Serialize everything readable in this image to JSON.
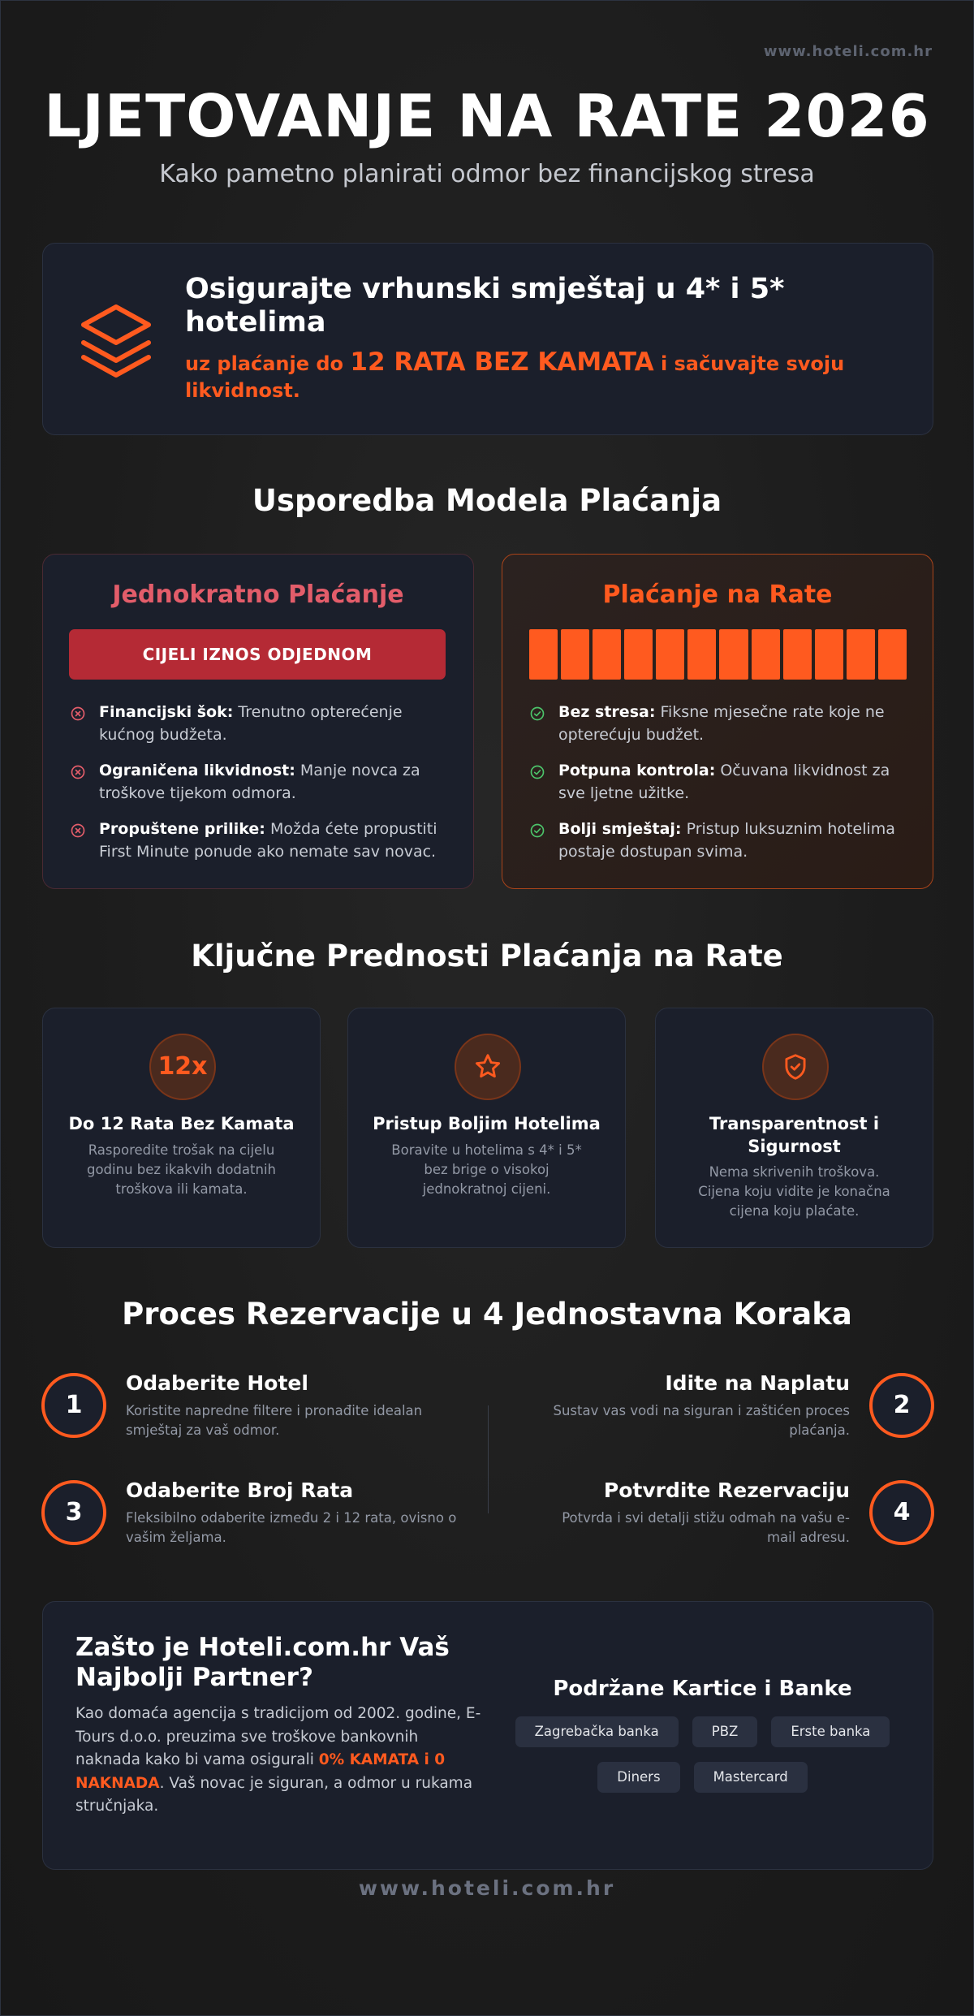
{
  "header": {
    "url": "www.hoteli.com.hr",
    "title": "LJETOVANJE NA RATE 2026",
    "subtitle": "Kako pametno planirati odmor bez financijskog stresa"
  },
  "hero": {
    "title": "Osigurajte vrhunski smještaj u 4* i 5* hotelima",
    "text_before": "uz plaćanje do",
    "highlight": "12 RATA BEZ KAMATA",
    "text_after": "i sačuvajte svoju likvidnost."
  },
  "comparison": {
    "title": "Usporedba Modela Plaćanja",
    "one_time": {
      "title": "Jednokratno Plaćanje",
      "bar_label": "CIJELI IZNOS ODJEDNOM",
      "items": [
        {
          "label": "Financijski šok:",
          "text": "Trenutno opterećenje kućnog budžeta."
        },
        {
          "label": "Ograničena likvidnost:",
          "text": "Manje novca za troškove tijekom odmora."
        },
        {
          "label": "Propuštene prilike:",
          "text": "Možda ćete propustiti First Minute ponude ako nemate sav novac."
        }
      ]
    },
    "installments": {
      "title": "Plaćanje na Rate",
      "items": [
        {
          "label": "Bez stresa:",
          "text": "Fiksne mjesečne rate koje ne opterećuju budžet."
        },
        {
          "label": "Potpuna kontrola:",
          "text": "Očuvana likvidnost za sve ljetne užitke."
        },
        {
          "label": "Bolji smještaj:",
          "text": "Pristup luksuznim hotelima postaje dostupan svima."
        }
      ]
    }
  },
  "benefits": {
    "title": "Ključne Prednosti Plaćanja na Rate",
    "cards": [
      {
        "icon": "12x",
        "title": "Do 12 Rata Bez Kamata",
        "text": "Rasporedite trošak na cijelu godinu bez ikakvih dodatnih troškova ili kamata."
      },
      {
        "title": "Pristup Boljim Hotelima",
        "text": "Boravite u hotelima s 4* i 5* bez brige o visokoj jednokratnoj cijeni."
      },
      {
        "title": "Transparentnost i Sigurnost",
        "text": "Nema skrivenih troškova. Cijena koju vidite je konačna cijena koju plaćate."
      }
    ]
  },
  "process": {
    "title": "Proces Rezervacije u 4 Jednostavna Koraka",
    "steps": [
      {
        "number": "1",
        "title": "Odaberite Hotel",
        "text": "Koristite napredne filtere i pronađite idealan smještaj za vaš odmor."
      },
      {
        "number": "2",
        "title": "Idite na Naplatu",
        "text": "Sustav vas vodi na siguran i zaštićen proces plaćanja."
      },
      {
        "number": "3",
        "title": "Odaberite Broj Rata",
        "text": "Fleksibilno odaberite između 2 i 12 rata, ovisno o vašim željama."
      },
      {
        "number": "4",
        "title": "Potvrdite Rezervaciju",
        "text": "Potvrda i svi detalji stižu odmah na vašu e-mail adresu."
      }
    ]
  },
  "partner": {
    "title": "Zašto je Hoteli.com.hr Vaš Najbolji Partner?",
    "text_before": "Kao domaća agencija s tradicijom od 2002. godine, E-Tours d.o.o. preuzima sve troškove bankovnih naknada kako bi vama osigurali",
    "highlight": "0% KAMATA i 0 NAKNADA",
    "text_after": ". Vaš novac je siguran, a odmor u rukama stručnjaka.",
    "cards_title": "Podržane Kartice i Banke",
    "cards": [
      "Zagrebačka banka",
      "PBZ",
      "Erste banka",
      "Diners",
      "Mastercard"
    ]
  },
  "footer": "www.hoteli.com.hr"
}
